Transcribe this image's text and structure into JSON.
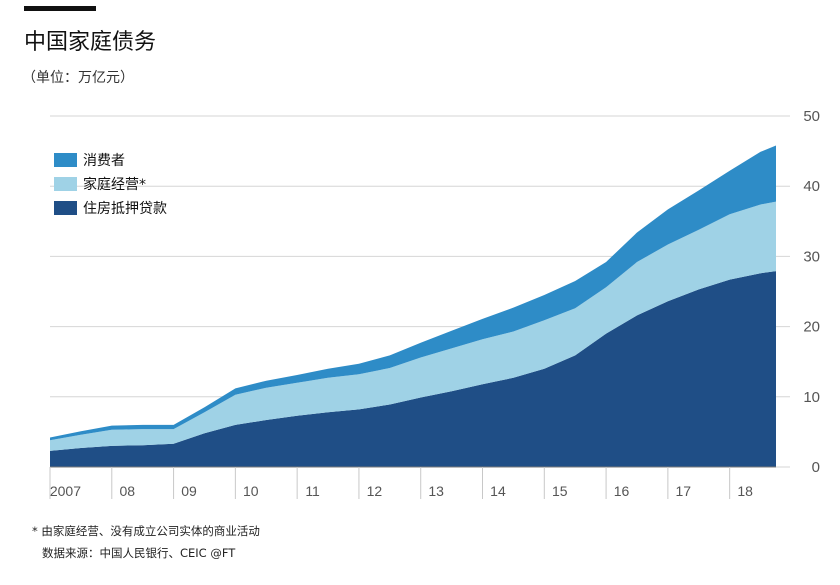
{
  "header": {
    "title": "中国家庭债务",
    "unit": "（单位：万亿元）"
  },
  "footer": {
    "footnote": "* 由家庭经营、没有成立公司实体的商业活动",
    "source": "数据来源：中国人民银行、CEIC  @FT"
  },
  "chart_data": {
    "type": "area",
    "stacked": true,
    "title": "中国家庭债务",
    "unit_note": "（单位：万亿元）",
    "xlabel": "",
    "ylabel": "",
    "ylim": [
      0,
      50
    ],
    "xlim": [
      2007.0,
      2018.75
    ],
    "y_ticks": [
      0,
      10,
      20,
      30,
      40,
      50
    ],
    "y_axis_side": "right",
    "x_tick_labels": [
      {
        "label": "2007",
        "x": 2007.25
      },
      {
        "label": "08",
        "x": 2008.25
      },
      {
        "label": "09",
        "x": 2009.25
      },
      {
        "label": "10",
        "x": 2010.25
      },
      {
        "label": "11",
        "x": 2011.25
      },
      {
        "label": "12",
        "x": 2012.25
      },
      {
        "label": "13",
        "x": 2013.25
      },
      {
        "label": "14",
        "x": 2014.25
      },
      {
        "label": "15",
        "x": 2015.25
      },
      {
        "label": "16",
        "x": 2016.25
      },
      {
        "label": "17",
        "x": 2017.25
      },
      {
        "label": "18",
        "x": 2018.25
      }
    ],
    "grid": true,
    "legend_position": "top-left",
    "x": [
      2007.0,
      2007.5,
      2008.0,
      2008.5,
      2009.0,
      2009.5,
      2010.0,
      2010.5,
      2011.0,
      2011.5,
      2012.0,
      2012.5,
      2013.0,
      2013.5,
      2014.0,
      2014.5,
      2015.0,
      2015.5,
      2016.0,
      2016.5,
      2017.0,
      2017.5,
      2018.0,
      2018.5,
      2018.75
    ],
    "series": [
      {
        "name": "住房抵押贷款",
        "color": "#1f4e86",
        "values": [
          2.3,
          2.7,
          3.0,
          3.1,
          3.3,
          4.8,
          6.0,
          6.7,
          7.3,
          7.8,
          8.2,
          8.9,
          9.9,
          10.8,
          11.8,
          12.7,
          14.0,
          15.9,
          19.0,
          21.6,
          23.6,
          25.3,
          26.7,
          27.6,
          27.9
        ]
      },
      {
        "name": "家庭经营*",
        "color": "#9fd2e6",
        "values": [
          1.5,
          1.9,
          2.3,
          2.3,
          2.1,
          3.0,
          4.3,
          4.6,
          4.7,
          4.9,
          5.0,
          5.2,
          5.7,
          6.1,
          6.4,
          6.6,
          6.9,
          6.7,
          6.6,
          7.6,
          8.1,
          8.5,
          9.3,
          9.8,
          9.9
        ]
      },
      {
        "name": "消费者",
        "color": "#2e8cc7",
        "values": [
          0.4,
          0.5,
          0.6,
          0.6,
          0.6,
          0.7,
          0.9,
          1.0,
          1.1,
          1.3,
          1.5,
          1.8,
          2.1,
          2.5,
          2.9,
          3.4,
          3.6,
          3.9,
          3.6,
          4.2,
          5.0,
          5.6,
          6.2,
          7.5,
          8.0
        ]
      }
    ]
  }
}
